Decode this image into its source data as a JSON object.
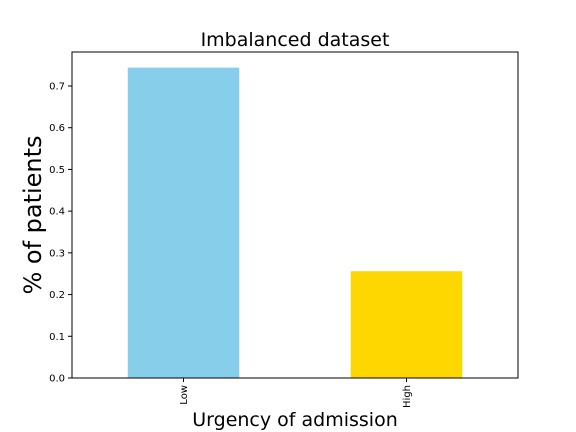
{
  "chart_data": {
    "type": "bar",
    "title": "Imbalanced dataset",
    "xlabel": "Urgency of admission",
    "ylabel": "% of patients",
    "categories": [
      "Low",
      "High"
    ],
    "values": [
      0.744,
      0.256
    ],
    "colors": [
      "#87ceeb",
      "#ffd700"
    ],
    "ylim": [
      0,
      0.7815
    ],
    "yticks": [
      0.0,
      0.1,
      0.2,
      0.3,
      0.4,
      0.5,
      0.6,
      0.7
    ],
    "ytick_labels": [
      "0.0",
      "0.1",
      "0.2",
      "0.3",
      "0.4",
      "0.5",
      "0.6",
      "0.7"
    ],
    "grid": false,
    "legend": "none"
  }
}
